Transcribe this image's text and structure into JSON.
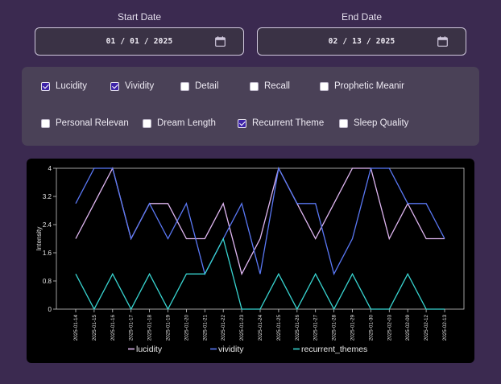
{
  "dates": {
    "start": {
      "label": "Start Date",
      "value": "01 / 01 / 2025"
    },
    "end": {
      "label": "End Date",
      "value": "02 / 13 / 2025"
    }
  },
  "filters": [
    {
      "label": "Lucidity",
      "checked": true
    },
    {
      "label": "Vividity",
      "checked": true
    },
    {
      "label": "Detail",
      "checked": false
    },
    {
      "label": "Recall",
      "checked": false
    },
    {
      "label": "Prophetic Meanir",
      "checked": false
    },
    {
      "label": "Personal Relevan",
      "checked": false
    },
    {
      "label": "Dream Length",
      "checked": false
    },
    {
      "label": "Recurrent Theme",
      "checked": true
    },
    {
      "label": "Sleep Quality",
      "checked": false
    }
  ],
  "colors": {
    "lucidity": "#e0b7f2",
    "vividity": "#5a78f5",
    "recurrent_themes": "#38d4d0",
    "checkbox_checked": "#3d23a8"
  },
  "chart_data": {
    "type": "line",
    "x": [
      "2025-01-14",
      "2025-01-15",
      "2025-01-16",
      "2025-01-17",
      "2025-01-18",
      "2025-01-19",
      "2025-01-20",
      "2025-01-21",
      "2025-01-22",
      "2025-01-23",
      "2025-01-24",
      "2025-01-25",
      "2025-01-26",
      "2025-01-27",
      "2025-01-28",
      "2025-01-29",
      "2025-01-30",
      "2025-02-03",
      "2025-02-09",
      "2025-02-12",
      "2025-02-13"
    ],
    "ylabel": "Intensity",
    "xlabel": "",
    "ylim": [
      0,
      4
    ],
    "yticks": [
      "0",
      "0.8",
      "1.6",
      "2.4",
      "3.2",
      "4"
    ],
    "grid": false,
    "legend_position": "bottom",
    "series": [
      {
        "name": "lucidity",
        "values": [
          2,
          3,
          4,
          2,
          3,
          3,
          2,
          2,
          3,
          1,
          2,
          4,
          3,
          2,
          3,
          4,
          4,
          2,
          3,
          2,
          2
        ]
      },
      {
        "name": "vividity",
        "values": [
          3,
          4,
          4,
          2,
          3,
          2,
          3,
          1,
          2,
          3,
          1,
          4,
          3,
          3,
          1,
          2,
          4,
          4,
          3,
          3,
          2
        ]
      },
      {
        "name": "recurrent_themes",
        "values": [
          1,
          0,
          1,
          0,
          1,
          0,
          1,
          1,
          2,
          0,
          0,
          1,
          0,
          1,
          0,
          1,
          0,
          0,
          1,
          0,
          0
        ]
      }
    ]
  }
}
